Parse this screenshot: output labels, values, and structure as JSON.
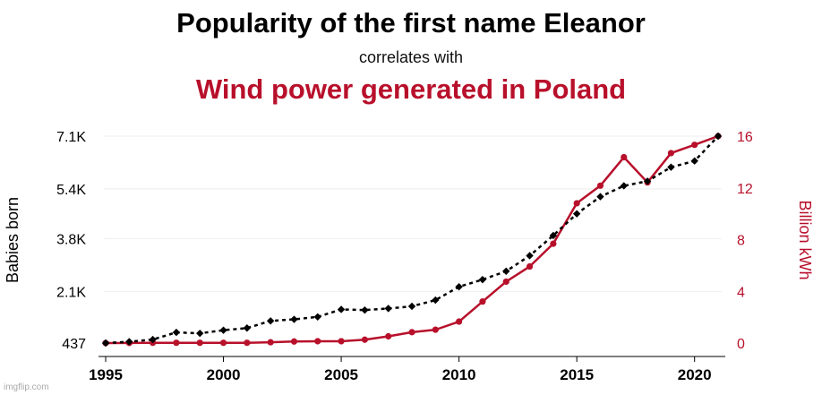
{
  "header": {
    "title": "Popularity of the first name Eleanor",
    "subtitle": "correlates with",
    "title2": "Wind power generated in Poland"
  },
  "watermark": "imgflip.com",
  "colors": {
    "series1": "#000000",
    "series2": "#b8102b",
    "grid": "#eeeeee"
  },
  "chart_data": {
    "type": "line",
    "x": [
      1995,
      1996,
      1997,
      1998,
      1999,
      2000,
      2001,
      2002,
      2003,
      2004,
      2005,
      2006,
      2007,
      2008,
      2009,
      2010,
      2011,
      2012,
      2013,
      2014,
      2015,
      2016,
      2017,
      2018,
      2019,
      2020,
      2021
    ],
    "xlim": [
      1995,
      2021
    ],
    "x_ticks": [
      1995,
      2000,
      2005,
      2010,
      2015,
      2020
    ],
    "x_tick_labels": [
      "1995",
      "2000",
      "2005",
      "2010",
      "2015",
      "2020"
    ],
    "grid": true,
    "series": [
      {
        "name": "Babies born",
        "axis": "left",
        "style": "dotted",
        "marker": "diamond",
        "values": [
          437,
          480,
          550,
          780,
          750,
          850,
          920,
          1150,
          1200,
          1280,
          1520,
          1500,
          1550,
          1620,
          1820,
          2250,
          2480,
          2750,
          3250,
          3900,
          4600,
          5150,
          5500,
          5650,
          6100,
          6300,
          7100
        ]
      },
      {
        "name": "Wind power",
        "axis": "right",
        "style": "solid",
        "marker": "circle",
        "values": [
          0.0,
          0.01,
          0.02,
          0.02,
          0.02,
          0.02,
          0.02,
          0.06,
          0.12,
          0.14,
          0.14,
          0.26,
          0.52,
          0.84,
          1.03,
          1.66,
          3.21,
          4.75,
          5.92,
          7.68,
          10.81,
          12.17,
          14.37,
          12.42,
          14.69,
          15.33,
          16.0
        ]
      }
    ],
    "y_left": {
      "label": "Babies born",
      "ylim": [
        437,
        7100
      ],
      "ticks": [
        437,
        2100,
        3800,
        5400,
        7100
      ],
      "tick_labels": [
        "437",
        "2.1K",
        "3.8K",
        "5.4K",
        "7.1K"
      ]
    },
    "y_right": {
      "label": "Billion kWh",
      "ylim": [
        0,
        16
      ],
      "ticks": [
        0,
        4,
        8,
        12,
        16
      ],
      "tick_labels": [
        "0",
        "4",
        "8",
        "12",
        "16"
      ]
    }
  }
}
